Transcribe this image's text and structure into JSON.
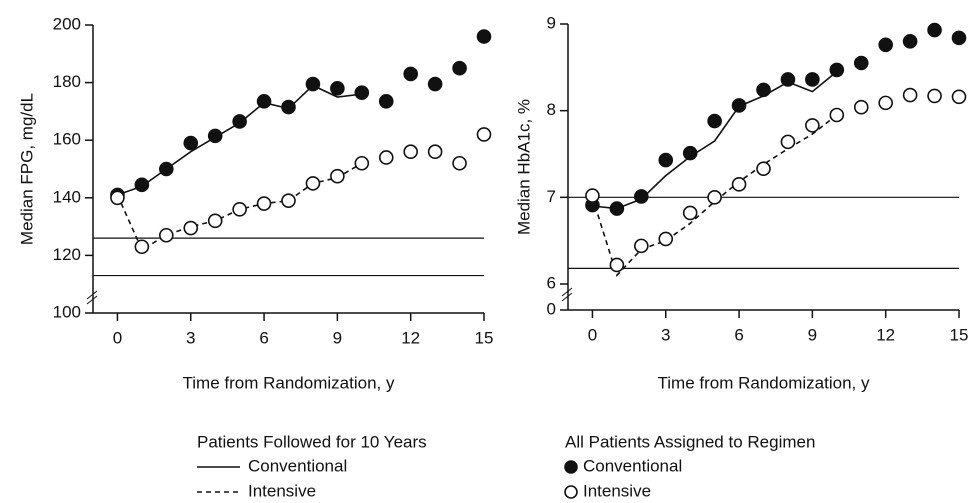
{
  "chart_data": [
    {
      "type": "line",
      "ylabel": "Median FPG, mg/dL",
      "xlabel": "Time from Randomization, y",
      "xlim": [
        -1,
        15
      ],
      "xticks": [
        0,
        3,
        6,
        9,
        12,
        15
      ],
      "ylim": [
        100,
        200
      ],
      "yticks": [
        100,
        120,
        140,
        160,
        180,
        200
      ],
      "reference_lines": [
        126,
        113
      ],
      "series": [
        {
          "style": "solid",
          "color": "#111111",
          "x": [
            0,
            1,
            2,
            3,
            4,
            5,
            6,
            7,
            8,
            9,
            10
          ],
          "values": [
            141,
            144,
            150,
            156,
            161,
            166,
            173,
            171,
            179,
            175,
            176
          ]
        },
        {
          "style": "dashed",
          "color": "#111111",
          "x": [
            0,
            1,
            2,
            3,
            4,
            5,
            6,
            7,
            8,
            9,
            10
          ],
          "values": [
            141,
            122,
            127,
            130,
            132,
            136,
            138,
            139,
            145,
            147,
            152
          ]
        },
        {
          "style": "filled",
          "color": "#111111",
          "x": [
            0,
            1,
            2,
            3,
            4,
            5,
            6,
            7,
            8,
            9,
            10,
            11,
            12,
            13,
            14,
            15
          ],
          "values": [
            141,
            144.5,
            150,
            159,
            161.5,
            166.5,
            173.5,
            171.5,
            179.5,
            178,
            176.5,
            173.5,
            183,
            179.5,
            185,
            196
          ]
        },
        {
          "style": "open",
          "color": "#111111",
          "x": [
            0,
            1,
            2,
            3,
            4,
            5,
            6,
            7,
            8,
            9,
            10,
            11,
            12,
            13,
            14,
            15
          ],
          "values": [
            140,
            123,
            127,
            129.5,
            132,
            136,
            138,
            139,
            145,
            147.5,
            152,
            154,
            156,
            156,
            152,
            162
          ]
        }
      ]
    },
    {
      "type": "line",
      "ylabel": "Median HbA1c, %",
      "xlabel": "Time from Randomization, y",
      "xlim": [
        -1,
        15
      ],
      "xticks": [
        0,
        3,
        6,
        9,
        12,
        15
      ],
      "ylim": [
        5.7,
        9
      ],
      "yticks": [
        6,
        7,
        8,
        9
      ],
      "axis_floor_label": 0,
      "reference_lines": [
        7.0,
        6.18
      ],
      "series": [
        {
          "style": "solid",
          "color": "#111111",
          "x": [
            0,
            1,
            2,
            3,
            4,
            5,
            6,
            7,
            8,
            9,
            10
          ],
          "values": [
            6.9,
            6.87,
            6.98,
            7.25,
            7.47,
            7.65,
            8.05,
            8.17,
            8.33,
            8.22,
            8.45
          ]
        },
        {
          "style": "dashed",
          "color": "#111111",
          "x": [
            0,
            1,
            2,
            3,
            4,
            5,
            6,
            7,
            8,
            9,
            10
          ],
          "values": [
            7.0,
            6.1,
            6.4,
            6.5,
            6.7,
            6.95,
            7.18,
            7.38,
            7.56,
            7.73,
            7.95
          ]
        },
        {
          "style": "filled",
          "color": "#111111",
          "x": [
            0,
            1,
            2,
            3,
            4,
            5,
            6,
            7,
            8,
            9,
            10,
            11,
            12,
            13,
            14,
            15
          ],
          "values": [
            6.91,
            6.87,
            7.01,
            7.43,
            7.51,
            7.88,
            8.06,
            8.24,
            8.36,
            8.36,
            8.47,
            8.55,
            8.76,
            8.8,
            8.93,
            8.84
          ]
        },
        {
          "style": "open",
          "color": "#111111",
          "x": [
            0,
            1,
            2,
            3,
            4,
            5,
            6,
            7,
            8,
            9,
            10,
            11,
            12,
            13,
            14,
            15
          ],
          "values": [
            7.02,
            6.22,
            6.44,
            6.52,
            6.82,
            7.0,
            7.15,
            7.33,
            7.64,
            7.83,
            7.95,
            8.04,
            8.09,
            8.18,
            8.17,
            8.16
          ]
        }
      ]
    }
  ],
  "legend": [
    {
      "title": "Patients Followed for 10 Years",
      "entries": [
        {
          "name": "Conventional",
          "style": "solid"
        },
        {
          "name": "Intensive",
          "style": "dashed"
        }
      ]
    },
    {
      "title": "All Patients Assigned to Regimen",
      "entries": [
        {
          "name": "Conventional",
          "style": "filled"
        },
        {
          "name": "Intensive",
          "style": "open"
        }
      ]
    }
  ]
}
